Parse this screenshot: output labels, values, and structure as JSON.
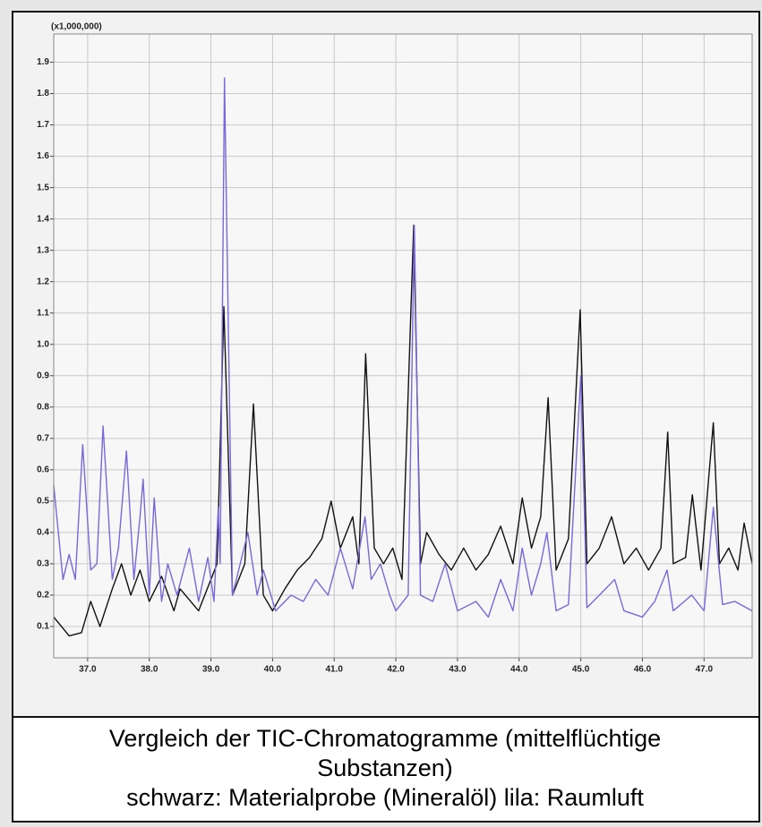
{
  "chart_data": {
    "type": "line",
    "ylabel": "(x1,000,000)",
    "title": "Vergleich der TIC-Chromatogramme (mittelflüchtige",
    "subtitle": "Substanzen)",
    "caption": "schwarz: Materialprobe (Mineralöl) lila: Raumluft",
    "xlim": [
      36.45,
      47.78
    ],
    "ylim": [
      0,
      1.99
    ],
    "xticks": [
      {
        "value": 37,
        "label": "37.0"
      },
      {
        "value": 38,
        "label": "38.0"
      },
      {
        "value": 39,
        "label": "39.0"
      },
      {
        "value": 40,
        "label": "40.0"
      },
      {
        "value": 41,
        "label": "41.0"
      },
      {
        "value": 42,
        "label": "42.0"
      },
      {
        "value": 43,
        "label": "43.0"
      },
      {
        "value": 44,
        "label": "44.0"
      },
      {
        "value": 45,
        "label": "45.0"
      },
      {
        "value": 46,
        "label": "46.0"
      },
      {
        "value": 47,
        "label": "47.0"
      }
    ],
    "yticks": [
      0.1,
      0.2,
      0.3,
      0.4,
      0.5,
      0.6,
      0.7,
      0.8,
      0.9,
      {
        "value": 1,
        "label": "1.0"
      },
      1.1,
      1.2,
      1.3,
      1.4,
      1.5,
      1.6,
      1.7,
      1.8,
      1.9
    ],
    "grid": true,
    "series": [
      {
        "color": "#111111",
        "x": [
          36.45,
          36.7,
          36.9,
          37.05,
          37.2,
          37.4,
          37.55,
          37.7,
          37.85,
          38.0,
          38.2,
          38.4,
          38.5,
          38.8,
          38.9,
          39.0,
          39.1,
          39.21,
          39.35,
          39.55,
          39.69,
          39.85,
          40.0,
          40.2,
          40.4,
          40.6,
          40.8,
          40.95,
          41.1,
          41.3,
          41.4,
          41.51,
          41.65,
          41.8,
          41.95,
          42.1,
          42.29,
          42.4,
          42.5,
          42.7,
          42.9,
          43.1,
          43.3,
          43.5,
          43.7,
          43.9,
          44.05,
          44.2,
          44.35,
          44.47,
          44.6,
          44.8,
          44.99,
          45.1,
          45.3,
          45.5,
          45.7,
          45.9,
          46.1,
          46.3,
          46.41,
          46.5,
          46.7,
          46.81,
          46.95,
          47.15,
          47.25,
          47.4,
          47.55,
          47.65,
          47.78
        ],
        "values": [
          0.13,
          0.07,
          0.08,
          0.18,
          0.1,
          0.22,
          0.3,
          0.2,
          0.28,
          0.18,
          0.26,
          0.15,
          0.22,
          0.15,
          0.2,
          0.25,
          0.3,
          1.12,
          0.2,
          0.3,
          0.81,
          0.2,
          0.15,
          0.22,
          0.28,
          0.32,
          0.38,
          0.5,
          0.35,
          0.45,
          0.3,
          0.97,
          0.35,
          0.3,
          0.35,
          0.25,
          1.38,
          0.3,
          0.4,
          0.33,
          0.28,
          0.35,
          0.28,
          0.33,
          0.42,
          0.3,
          0.51,
          0.35,
          0.45,
          0.83,
          0.28,
          0.38,
          1.11,
          0.3,
          0.35,
          0.45,
          0.3,
          0.35,
          0.28,
          0.35,
          0.72,
          0.3,
          0.32,
          0.52,
          0.28,
          0.75,
          0.3,
          0.35,
          0.28,
          0.43,
          0.3
        ]
      },
      {
        "color": "#7b68d8",
        "x": [
          36.45,
          36.6,
          36.7,
          36.8,
          36.92,
          37.05,
          37.15,
          37.25,
          37.4,
          37.5,
          37.63,
          37.75,
          37.85,
          37.9,
          38.0,
          38.08,
          38.2,
          38.3,
          38.45,
          38.65,
          38.8,
          38.95,
          39.05,
          39.12,
          39.15,
          39.22,
          39.35,
          39.6,
          39.75,
          39.85,
          40.05,
          40.3,
          40.5,
          40.7,
          40.9,
          41.1,
          41.3,
          41.5,
          41.6,
          41.75,
          41.9,
          42.0,
          42.2,
          42.3,
          42.4,
          42.6,
          42.8,
          43.0,
          43.3,
          43.5,
          43.7,
          43.9,
          44.05,
          44.2,
          44.35,
          44.45,
          44.6,
          44.8,
          45.0,
          45.1,
          45.3,
          45.55,
          45.7,
          46.0,
          46.2,
          46.4,
          46.5,
          46.8,
          47.0,
          47.15,
          47.3,
          47.5,
          47.78
        ],
        "values": [
          0.55,
          0.25,
          0.33,
          0.25,
          0.68,
          0.28,
          0.3,
          0.74,
          0.25,
          0.35,
          0.66,
          0.25,
          0.45,
          0.57,
          0.2,
          0.51,
          0.18,
          0.3,
          0.2,
          0.35,
          0.18,
          0.32,
          0.18,
          0.48,
          0.3,
          1.85,
          0.2,
          0.4,
          0.2,
          0.28,
          0.15,
          0.2,
          0.18,
          0.25,
          0.2,
          0.35,
          0.22,
          0.45,
          0.25,
          0.3,
          0.2,
          0.15,
          0.2,
          1.38,
          0.2,
          0.18,
          0.3,
          0.15,
          0.18,
          0.13,
          0.25,
          0.15,
          0.35,
          0.2,
          0.3,
          0.4,
          0.15,
          0.17,
          0.9,
          0.16,
          0.2,
          0.25,
          0.15,
          0.13,
          0.18,
          0.28,
          0.15,
          0.2,
          0.15,
          0.48,
          0.17,
          0.18,
          0.15
        ]
      }
    ]
  }
}
